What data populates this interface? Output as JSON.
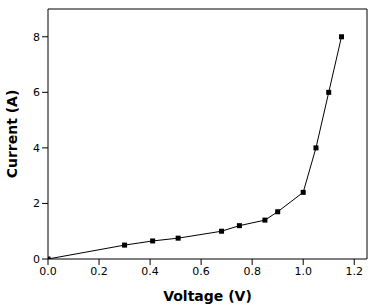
{
  "chart_data": {
    "type": "line",
    "x_label": "Voltage (V)",
    "y_label": "Current (A)",
    "x": [
      0,
      0.3,
      0.41,
      0.51,
      0.68,
      0.75,
      0.85,
      0.9,
      1.0,
      1.05,
      1.1,
      1.15
    ],
    "values": [
      0,
      0.5,
      0.65,
      0.75,
      1.0,
      1.2,
      1.4,
      1.7,
      2.4,
      4.0,
      6.0,
      8.0
    ],
    "color": "#000000",
    "marker": "square",
    "line_style": "solid",
    "xlim": [
      0,
      1.25
    ],
    "xticks": [
      {
        "value": 0,
        "label": "0.0"
      },
      0.2,
      0.4,
      0.6,
      0.8,
      {
        "value": 1,
        "label": "1.0"
      },
      1.2
    ],
    "ylim": [
      0,
      9
    ],
    "yticks": [
      0,
      2,
      4,
      6,
      8
    ],
    "grid": false
  }
}
